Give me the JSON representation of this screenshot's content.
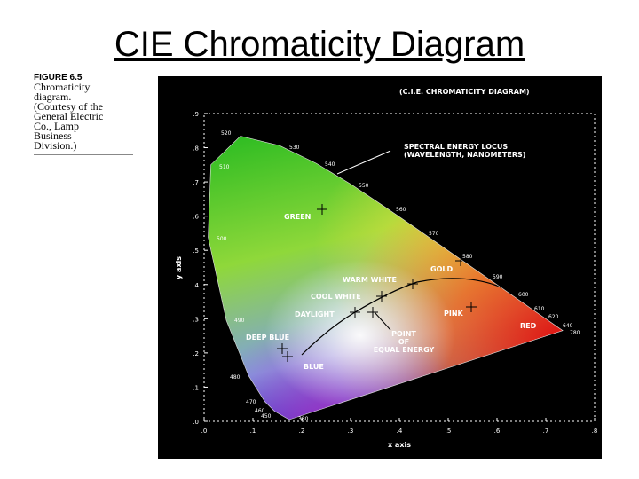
{
  "slide_title": "CIE Chromaticity Diagram",
  "caption": [
    "FIGURE 6.5",
    "Chromaticity",
    "diagram.",
    "(Courtesy of the",
    "General Electric",
    "Co., Lamp",
    "Business",
    "Division.)"
  ],
  "diagram": {
    "title": "(C.I.E. CHROMATICITY DIAGRAM)",
    "locus_label": [
      "SPECTRAL ENERGY LOCUS",
      "(WAVELENGTH, NANOMETERS)"
    ],
    "x_axis_label": "x axis",
    "y_axis_label": "y axis",
    "x_ticks": [
      ".0",
      ".1",
      ".2",
      ".3",
      ".4",
      ".5",
      ".6",
      ".7",
      ".8"
    ],
    "y_ticks": [
      ".0",
      ".1",
      ".2",
      ".3",
      ".4",
      ".5",
      ".6",
      ".7",
      ".8",
      ".9"
    ],
    "wavelengths": [
      "520",
      "530",
      "540",
      "550",
      "560",
      "570",
      "580",
      "590",
      "600",
      "610",
      "620",
      "640",
      "780",
      "510",
      "500",
      "490",
      "480",
      "470",
      "460",
      "450",
      "380"
    ],
    "regions": [
      "GREEN",
      "GOLD",
      "WARM WHITE",
      "COOL WHITE",
      "DAYLIGHT",
      "PINK",
      "RED",
      "DEEP BLUE",
      "BLUE",
      "POINT",
      "OF",
      "EQUAL ENERGY"
    ]
  }
}
